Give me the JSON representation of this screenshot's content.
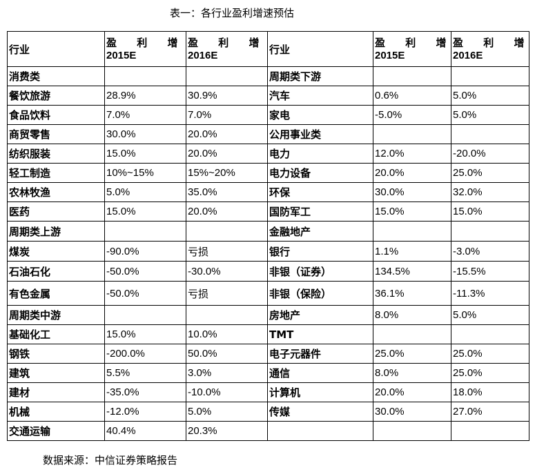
{
  "title": "表一：各行业盈利增速预估",
  "header": {
    "industry": "行业",
    "growth": "盈 利 增 速",
    "y2015": "2015E",
    "y2016": "2016E"
  },
  "rows": [
    {
      "l": {
        "name": "消费类",
        "v15": "",
        "v16": ""
      },
      "r": {
        "name": "周期类下游",
        "v15": "",
        "v16": ""
      }
    },
    {
      "l": {
        "name": "餐饮旅游",
        "v15": "28.9%",
        "v16": "30.9%"
      },
      "r": {
        "name": "汽车",
        "v15": "0.6%",
        "v16": "5.0%"
      }
    },
    {
      "l": {
        "name": "食品饮料",
        "v15": "7.0%",
        "v16": "7.0%"
      },
      "r": {
        "name": "家电",
        "v15": "-5.0%",
        "v16": "5.0%"
      }
    },
    {
      "l": {
        "name": "商贸零售",
        "v15": "30.0%",
        "v16": "20.0%"
      },
      "r": {
        "name": "公用事业类",
        "v15": "",
        "v16": ""
      }
    },
    {
      "l": {
        "name": "纺织服装",
        "v15": "15.0%",
        "v16": "20.0%"
      },
      "r": {
        "name": "电力",
        "v15": "12.0%",
        "v16": "-20.0%"
      }
    },
    {
      "l": {
        "name": "轻工制造",
        "v15": "10%~15%",
        "v16": "15%~20%"
      },
      "r": {
        "name": "电力设备",
        "v15": "20.0%",
        "v16": "25.0%"
      }
    },
    {
      "l": {
        "name": "农林牧渔",
        "v15": "5.0%",
        "v16": "35.0%"
      },
      "r": {
        "name": "环保",
        "v15": "30.0%",
        "v16": "32.0%"
      }
    },
    {
      "l": {
        "name": "医药",
        "v15": "15.0%",
        "v16": "20.0%"
      },
      "r": {
        "name": "国防军工",
        "v15": "15.0%",
        "v16": "15.0%"
      }
    },
    {
      "l": {
        "name": "周期类上游",
        "v15": "",
        "v16": ""
      },
      "r": {
        "name": "金融地产",
        "v15": "",
        "v16": ""
      }
    },
    {
      "l": {
        "name": "煤炭",
        "v15": "-90.0%",
        "v16": "亏损"
      },
      "r": {
        "name": "银行",
        "v15": "1.1%",
        "v16": "-3.0%"
      }
    },
    {
      "l": {
        "name": "石油石化",
        "v15": "-50.0%",
        "v16": "-30.0%"
      },
      "r": {
        "name": "非银（证券）",
        "v15": "134.5%",
        "v16": "-15.5%"
      }
    },
    {
      "l": {
        "name": "有色金属",
        "v15": "-50.0%",
        "v16": "亏损"
      },
      "r": {
        "name": "非银（保险）",
        "v15": "36.1%",
        "v16": "-11.3%"
      }
    },
    {
      "l": {
        "name": "周期类中游",
        "v15": "",
        "v16": ""
      },
      "r": {
        "name": "房地产",
        "v15": "8.0%",
        "v16": "5.0%"
      }
    },
    {
      "l": {
        "name": "基础化工",
        "v15": "15.0%",
        "v16": "10.0%"
      },
      "r": {
        "name": "TMT",
        "v15": "",
        "v16": ""
      }
    },
    {
      "l": {
        "name": "钢铁",
        "v15": "-200.0%",
        "v16": "50.0%"
      },
      "r": {
        "name": "电子元器件",
        "v15": "25.0%",
        "v16": "25.0%"
      }
    },
    {
      "l": {
        "name": "建筑",
        "v15": "5.5%",
        "v16": "3.0%"
      },
      "r": {
        "name": "通信",
        "v15": "8.0%",
        "v16": "25.0%"
      }
    },
    {
      "l": {
        "name": "建材",
        "v15": "-35.0%",
        "v16": "-10.0%"
      },
      "r": {
        "name": "计算机",
        "v15": "20.0%",
        "v16": "18.0%"
      }
    },
    {
      "l": {
        "name": "机械",
        "v15": "-12.0%",
        "v16": "5.0%"
      },
      "r": {
        "name": "传媒",
        "v15": "30.0%",
        "v16": "27.0%"
      }
    },
    {
      "l": {
        "name": "交通运输",
        "v15": "40.4%",
        "v16": "20.3%"
      },
      "r": {
        "name": "",
        "v15": "",
        "v16": ""
      }
    }
  ],
  "source": "数据来源：中信证券策略报告"
}
